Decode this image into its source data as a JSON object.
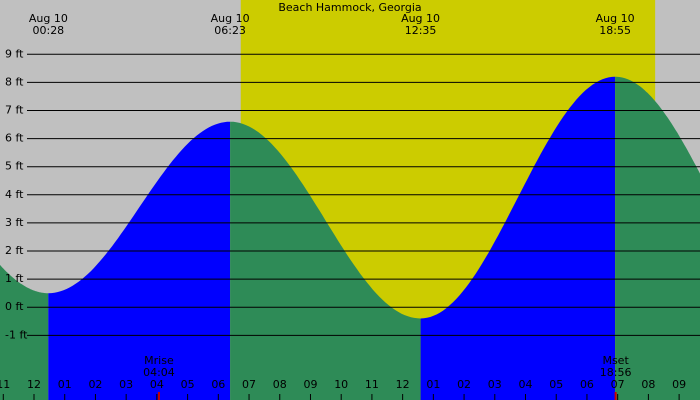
{
  "chart_data": {
    "type": "tide",
    "title": "Beach Hammock, Georgia",
    "ylim": [
      -3.3,
      10.93
    ],
    "yticks": [
      {
        "value": 9,
        "label": "9 ft"
      },
      {
        "value": 8,
        "label": "8 ft"
      },
      {
        "value": 7,
        "label": "7 ft"
      },
      {
        "value": 6,
        "label": "6 ft"
      },
      {
        "value": 5,
        "label": "5 ft"
      },
      {
        "value": 4,
        "label": "4 ft"
      },
      {
        "value": 3,
        "label": "3 ft"
      },
      {
        "value": 2,
        "label": "2 ft"
      },
      {
        "value": 1,
        "label": "1 ft"
      },
      {
        "value": 0,
        "label": "0 ft"
      },
      {
        "value": -1,
        "label": "-1 ft"
      }
    ],
    "xlim": [
      -1.107,
      21.68
    ],
    "xticks": [
      {
        "value": -1,
        "label": "11"
      },
      {
        "value": 0,
        "label": "12"
      },
      {
        "value": 1,
        "label": "01"
      },
      {
        "value": 2,
        "label": "02"
      },
      {
        "value": 3,
        "label": "03"
      },
      {
        "value": 4,
        "label": "04"
      },
      {
        "value": 5,
        "label": "05"
      },
      {
        "value": 6,
        "label": "06"
      },
      {
        "value": 7,
        "label": "07"
      },
      {
        "value": 8,
        "label": "08"
      },
      {
        "value": 9,
        "label": "09"
      },
      {
        "value": 10,
        "label": "10"
      },
      {
        "value": 11,
        "label": "11"
      },
      {
        "value": 12,
        "label": "12"
      },
      {
        "value": 13,
        "label": "01"
      },
      {
        "value": 14,
        "label": "02"
      },
      {
        "value": 15,
        "label": "03"
      },
      {
        "value": 16,
        "label": "04"
      },
      {
        "value": 17,
        "label": "05"
      },
      {
        "value": 18,
        "label": "06"
      },
      {
        "value": 19,
        "label": "07"
      },
      {
        "value": 20,
        "label": "08"
      },
      {
        "value": 21,
        "label": "09"
      }
    ],
    "daylight": [
      6.73,
      20.22
    ],
    "extremes": [
      {
        "date": "Aug 10",
        "time": "00:28",
        "height": 0.5
      },
      {
        "date": "Aug 10",
        "time": "06:23",
        "height": 6.6
      },
      {
        "date": "Aug 10",
        "time": "12:35",
        "height": -0.4
      },
      {
        "date": "Aug 10",
        "time": "18:55",
        "height": 8.2
      }
    ],
    "moon": [
      {
        "name": "Mrise",
        "time": "04:04"
      },
      {
        "name": "Mset",
        "time": "18:56"
      }
    ],
    "colors": {
      "night": "#c0c0c0",
      "day": "#cccc00",
      "rising": "#0000ff",
      "falling": "#2e8b57"
    }
  }
}
